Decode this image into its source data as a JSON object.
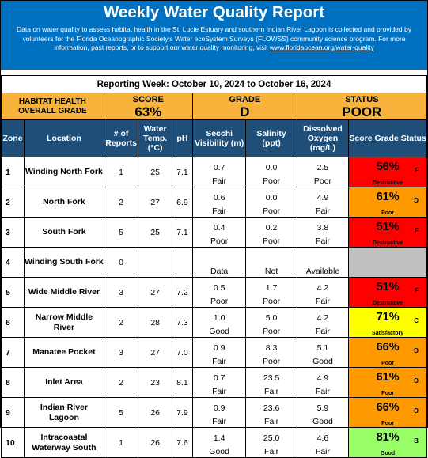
{
  "header": {
    "title": "Weekly Water Quality Report",
    "description": "Data on water quality to assess habitat health in the St. Lucie Estuary and southern Indian River Lagoon is collected and provided by volunteers for the Florida Oceanographic Society's Water ecoSystem Surveys (FLOWSS) community science program. For more information, past reports, or to support our water quality monitoring, visit ",
    "link": "www.floridaocean.org/water-quality"
  },
  "reporting_week": "Reporting Week: October 10, 2024 to October 16, 2024",
  "summary": {
    "habitat_label": "HABITAT HEALTH OVERALL GRADE",
    "score_label": "SCORE",
    "score_value": "63%",
    "grade_label": "GRADE",
    "grade_value": "D",
    "status_label": "STATUS",
    "status_value": "POOR"
  },
  "columns": {
    "zone": "Zone",
    "location": "Location",
    "reports": "# of Reports",
    "temp": "Water Temp. (°C)",
    "ph": "pH",
    "secchi": "Secchi Visibility (m)",
    "salinity": "Salinity (ppt)",
    "oxygen": "Dissolved Oxygen (mg/L)",
    "score": "Score Grade Status"
  },
  "colors": {
    "header_blue": "#0070C0",
    "column_header": "#1F4E79",
    "summary_orange": "#F7B33B",
    "destructive": "#FF0000",
    "poor": "#FF9900",
    "satisfactory": "#FFFF00",
    "good": "#99FF66",
    "no_data": "#C0C0C0"
  },
  "rows": [
    {
      "zone": "1",
      "location": "Winding North Fork",
      "reports": "1",
      "temp": "25",
      "ph": "7.1",
      "secchi": "0.7",
      "secchi_rating": "Fair",
      "salinity": "0.0",
      "salinity_rating": "Poor",
      "oxygen": "2.5",
      "oxygen_rating": "Poor",
      "score": "56%",
      "grade": "F",
      "status": "Destructive",
      "color": "#FF0000"
    },
    {
      "zone": "2",
      "location": "North Fork",
      "reports": "2",
      "temp": "27",
      "ph": "6.9",
      "secchi": "0.6",
      "secchi_rating": "Fair",
      "salinity": "0.0",
      "salinity_rating": "Poor",
      "oxygen": "4.9",
      "oxygen_rating": "Fair",
      "score": "61%",
      "grade": "D",
      "status": "Poor",
      "color": "#FF9900"
    },
    {
      "zone": "3",
      "location": "South Fork",
      "reports": "5",
      "temp": "25",
      "ph": "7.1",
      "secchi": "0.4",
      "secchi_rating": "Poor",
      "salinity": "0.2",
      "salinity_rating": "Poor",
      "oxygen": "3.8",
      "oxygen_rating": "Fair",
      "score": "51%",
      "grade": "F",
      "status": "Destructive",
      "color": "#FF0000"
    },
    {
      "zone": "4",
      "location": "Winding South Fork",
      "reports": "0",
      "temp": "",
      "ph": "",
      "secchi": "",
      "secchi_rating": "Data",
      "salinity": "",
      "salinity_rating": "Not",
      "oxygen": "",
      "oxygen_rating": "Available",
      "score": "",
      "grade": "",
      "status": "",
      "color": "#C0C0C0"
    },
    {
      "zone": "5",
      "location": "Wide Middle River",
      "reports": "3",
      "temp": "27",
      "ph": "7.2",
      "secchi": "0.5",
      "secchi_rating": "Poor",
      "salinity": "1.7",
      "salinity_rating": "Poor",
      "oxygen": "4.2",
      "oxygen_rating": "Fair",
      "score": "51%",
      "grade": "F",
      "status": "Destructive",
      "color": "#FF0000"
    },
    {
      "zone": "6",
      "location": "Narrow Middle River",
      "reports": "2",
      "temp": "28",
      "ph": "7.3",
      "secchi": "1.0",
      "secchi_rating": "Good",
      "salinity": "5.0",
      "salinity_rating": "Poor",
      "oxygen": "4.2",
      "oxygen_rating": "Fair",
      "score": "71%",
      "grade": "C",
      "status": "Satisfactory",
      "color": "#FFFF00"
    },
    {
      "zone": "7",
      "location": "Manatee Pocket",
      "reports": "3",
      "temp": "27",
      "ph": "7.0",
      "secchi": "0.9",
      "secchi_rating": "Fair",
      "salinity": "8.3",
      "salinity_rating": "Poor",
      "oxygen": "5.1",
      "oxygen_rating": "Good",
      "score": "66%",
      "grade": "D",
      "status": "Poor",
      "color": "#FF9900"
    },
    {
      "zone": "8",
      "location": "Inlet Area",
      "reports": "2",
      "temp": "23",
      "ph": "8.1",
      "secchi": "0.7",
      "secchi_rating": "Fair",
      "salinity": "23.5",
      "salinity_rating": "Fair",
      "oxygen": "4.9",
      "oxygen_rating": "Fair",
      "score": "61%",
      "grade": "D",
      "status": "Poor",
      "color": "#FF9900"
    },
    {
      "zone": "9",
      "location": "Indian River Lagoon",
      "reports": "5",
      "temp": "26",
      "ph": "7.9",
      "secchi": "0.9",
      "secchi_rating": "Fair",
      "salinity": "23.6",
      "salinity_rating": "Fair",
      "oxygen": "5.9",
      "oxygen_rating": "Good",
      "score": "66%",
      "grade": "D",
      "status": "Poor",
      "color": "#FF9900"
    },
    {
      "zone": "10",
      "location": "Intracoastal Waterway South",
      "reports": "1",
      "temp": "26",
      "ph": "7.6",
      "secchi": "1.4",
      "secchi_rating": "Good",
      "salinity": "25.0",
      "salinity_rating": "Fair",
      "oxygen": "4.6",
      "oxygen_rating": "Fair",
      "score": "81%",
      "grade": "B",
      "status": "Good",
      "color": "#99FF66"
    }
  ]
}
